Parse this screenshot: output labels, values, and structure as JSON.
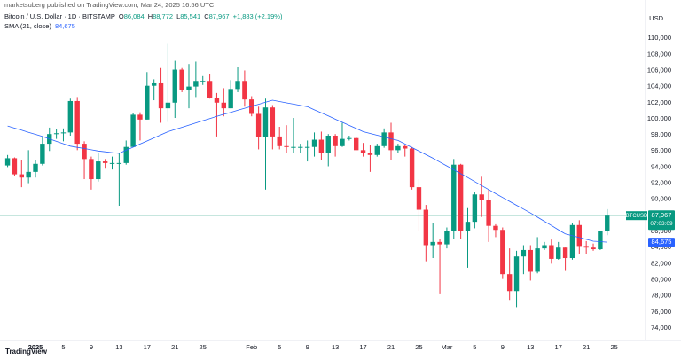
{
  "published": "marketsuberg published on TradingView.com, Mar 24, 2025 16:56 UTC",
  "brand": "TradingView",
  "chart_data": {
    "type": "candlestick",
    "title": "Bitcoin / U.S. Dollar · 1D · BITSTAMP",
    "ohlc_legend": [
      {
        "key": "O",
        "text": "86,084"
      },
      {
        "key": "H",
        "text": "88,772"
      },
      {
        "key": "L",
        "text": "85,541"
      },
      {
        "key": "C",
        "text": "87,967"
      }
    ],
    "change": "+1,883 (+2.19%)",
    "currency": "USD",
    "symbol": "BTCUSD",
    "up_color": "#089981",
    "down_color": "#f23645",
    "x": [
      -3,
      -2,
      -1,
      0,
      1,
      2,
      3,
      4,
      5,
      6,
      7,
      8,
      9,
      10,
      11,
      12,
      13,
      14,
      15,
      16,
      17,
      18,
      19,
      20,
      21,
      22,
      23,
      24,
      25,
      26,
      27,
      28,
      29,
      30,
      31,
      32,
      33,
      34,
      35,
      36,
      37,
      38,
      39,
      40,
      41,
      42,
      43,
      44,
      45,
      46,
      47,
      48,
      49,
      50,
      51,
      52,
      53,
      54,
      55,
      56,
      57,
      58,
      59,
      60,
      61,
      62,
      63,
      64,
      65,
      66,
      67,
      68,
      69,
      70,
      71,
      72,
      73,
      74,
      75,
      76,
      77,
      78,
      79,
      80,
      81,
      82,
      83
    ],
    "open": [
      94200,
      95100,
      93100,
      92700,
      93400,
      94400,
      96900,
      98100,
      98200,
      98300,
      102200,
      96900,
      95000,
      92500,
      94700,
      94500,
      94500,
      94500,
      96500,
      100500,
      99900,
      104100,
      104400,
      101300,
      102000,
      106100,
      103600,
      104000,
      104700,
      104700,
      102600,
      102000,
      101300,
      103700,
      104700,
      102400,
      100600,
      97700,
      101400,
      97800,
      96600,
      96500,
      96500,
      96500,
      96500,
      97400,
      95800,
      97900,
      96600,
      97500,
      97600,
      96100,
      95800,
      95500,
      96600,
      98300,
      96100,
      96600,
      96300,
      91500,
      88700,
      84300,
      84700,
      84400,
      86100,
      94300,
      86100,
      87200,
      90600,
      89900,
      86700,
      86200,
      80700,
      78600,
      82900,
      83700,
      81000,
      83900,
      84300,
      82600,
      84000,
      82700,
      86800,
      84200,
      84000,
      83800,
      86084
    ],
    "high": [
      95500,
      95200,
      94900,
      96100,
      94900,
      97800,
      98900,
      98700,
      98800,
      102500,
      102700,
      97200,
      95300,
      95800,
      95000,
      95300,
      95800,
      97300,
      100700,
      100800,
      105800,
      104900,
      106300,
      109300,
      107200,
      106300,
      106800,
      107100,
      105300,
      105500,
      103200,
      103800,
      104800,
      106400,
      106000,
      102800,
      101500,
      102500,
      101700,
      99000,
      99200,
      100100,
      96900,
      97300,
      98300,
      98400,
      98100,
      98100,
      99500,
      97900,
      97700,
      97000,
      96700,
      96900,
      98800,
      99500,
      96900,
      96700,
      96500,
      92500,
      89300,
      87000,
      85100,
      86500,
      95000,
      94400,
      88900,
      90900,
      92800,
      91200,
      86900,
      86500,
      83900,
      83600,
      84300,
      84300,
      85300,
      84700,
      85000,
      84700,
      84000,
      87000,
      87400,
      84800,
      84500,
      86100,
      88772
    ],
    "low": [
      94000,
      92900,
      91500,
      92000,
      92700,
      94200,
      96000,
      97500,
      97200,
      97900,
      96100,
      92500,
      91200,
      92200,
      93800,
      93700,
      89200,
      94300,
      96500,
      97300,
      99900,
      102300,
      99500,
      99600,
      100100,
      103300,
      101300,
      102700,
      104200,
      102500,
      97800,
      100300,
      101300,
      103300,
      101500,
      100300,
      96200,
      91200,
      96200,
      96200,
      95700,
      95700,
      95700,
      94700,
      95300,
      94900,
      94100,
      95300,
      96500,
      97300,
      96100,
      95300,
      93400,
      95300,
      96400,
      94900,
      95700,
      95300,
      91200,
      86100,
      82300,
      82700,
      78200,
      83900,
      85100,
      85100,
      81500,
      86400,
      87800,
      84700,
      85300,
      80100,
      77500,
      76600,
      80700,
      79900,
      80800,
      83700,
      82000,
      82500,
      81100,
      82500,
      83200,
      83200,
      83600,
      83700,
      85541
    ],
    "close": [
      95100,
      93100,
      92700,
      93400,
      94400,
      96900,
      98100,
      98200,
      98300,
      102200,
      96900,
      95000,
      92500,
      94700,
      94500,
      94500,
      94500,
      96500,
      100500,
      99900,
      104100,
      104400,
      101300,
      102000,
      106100,
      103600,
      104000,
      104700,
      104700,
      102600,
      102000,
      101300,
      103700,
      104700,
      102400,
      100600,
      97700,
      101400,
      97800,
      96600,
      96500,
      96500,
      96500,
      96500,
      97400,
      95800,
      97900,
      96600,
      97500,
      97600,
      96100,
      95800,
      95500,
      96600,
      98300,
      96100,
      96600,
      96300,
      91500,
      88700,
      84300,
      84700,
      84400,
      86100,
      94300,
      86100,
      87200,
      90600,
      89900,
      86700,
      86200,
      80700,
      78600,
      82900,
      83700,
      81000,
      83900,
      84300,
      82600,
      84000,
      82700,
      86800,
      84200,
      84000,
      83800,
      86084,
      87967
    ],
    "sma": {
      "name": "SMA (21, close)",
      "color": "#2962ff",
      "last_label": "84,675",
      "values": [
        99100,
        98840,
        98580,
        98320,
        98060,
        97800,
        97500,
        97200,
        96900,
        96600,
        96450,
        96300,
        96150,
        96000,
        95900,
        95800,
        95700,
        96090,
        96470,
        96860,
        97240,
        97630,
        98010,
        98400,
        98670,
        98940,
        99210,
        99490,
        99760,
        100030,
        100300,
        100550,
        100800,
        101050,
        101300,
        101550,
        101800,
        102050,
        102300,
        102140,
        101980,
        101820,
        101660,
        101500,
        101110,
        100730,
        100340,
        99950,
        99560,
        99180,
        98790,
        98400,
        98180,
        97960,
        97740,
        97520,
        97300,
        96860,
        96420,
        95980,
        95540,
        95100,
        94620,
        94140,
        93660,
        93180,
        92700,
        92200,
        91700,
        91200,
        90700,
        90220,
        89740,
        89260,
        88780,
        88300,
        87780,
        87260,
        86740,
        86220,
        85700,
        85480,
        85250,
        85030,
        84800,
        84740,
        84675
      ]
    },
    "last_price": {
      "value": 87967,
      "label": "87,967"
    },
    "countdown": "07:03:09",
    "xlim": [
      -4.09,
      88.5
    ],
    "ylim": [
      72460,
      114750
    ],
    "xticks": [
      {
        "value": 1,
        "label": "2025"
      },
      5,
      9,
      13,
      17,
      21,
      25,
      {
        "value": 32,
        "label": "Feb"
      },
      {
        "value": 36,
        "label": "5"
      },
      {
        "value": 40,
        "label": "9"
      },
      {
        "value": 44,
        "label": "13"
      },
      {
        "value": 48,
        "label": "17"
      },
      {
        "value": 52,
        "label": "21"
      },
      {
        "value": 56,
        "label": "25"
      },
      {
        "value": 60,
        "label": "Mar"
      },
      {
        "value": 64,
        "label": "5"
      },
      {
        "value": 68,
        "label": "9"
      },
      {
        "value": 72,
        "label": "13"
      },
      {
        "value": 76,
        "label": "17"
      },
      {
        "value": 80,
        "label": "21"
      },
      {
        "value": 84,
        "label": "25"
      }
    ],
    "yticks": [
      {
        "value": 74000,
        "label": "74,000"
      },
      {
        "value": 76000,
        "label": "76,000"
      },
      {
        "value": 78000,
        "label": "78,000"
      },
      {
        "value": 80000,
        "label": "80,000"
      },
      {
        "value": 82000,
        "label": "82,000"
      },
      {
        "value": 84000,
        "label": "84,000"
      },
      {
        "value": 86000,
        "label": "86,000"
      },
      {
        "value": 88000,
        "label": "88,000"
      },
      {
        "value": 90000,
        "label": "90,000"
      },
      {
        "value": 92000,
        "label": "92,000"
      },
      {
        "value": 94000,
        "label": "94,000"
      },
      {
        "value": 96000,
        "label": "96,000"
      },
      {
        "value": 98000,
        "label": "98,000"
      },
      {
        "value": 100000,
        "label": "100,000"
      },
      {
        "value": 102000,
        "label": "102,000"
      },
      {
        "value": 104000,
        "label": "104,000"
      },
      {
        "value": 106000,
        "label": "106,000"
      },
      {
        "value": 108000,
        "label": "108,000"
      },
      {
        "value": 110000,
        "label": "110,000"
      }
    ],
    "grid": false
  }
}
